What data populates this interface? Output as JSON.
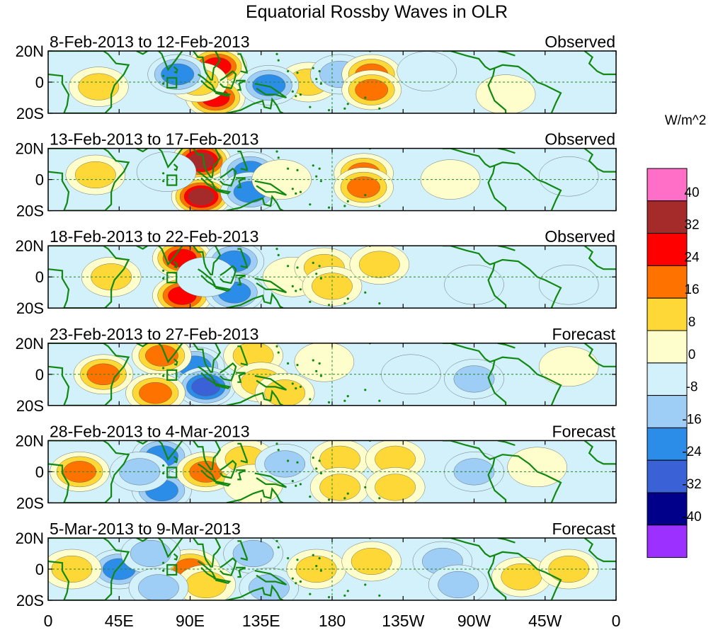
{
  "chart_data": {
    "type": "heatmap",
    "title": "Equatorial Rossby Waves in OLR",
    "units_label": "W/m^2",
    "variable": "OLR anomaly",
    "x_ticks": [
      "0",
      "45E",
      "90E",
      "135E",
      "180",
      "135W",
      "90W",
      "45W",
      "0"
    ],
    "x_tick_lon": [
      0,
      45,
      90,
      135,
      180,
      225,
      270,
      315,
      360
    ],
    "y_ticks": [
      "20N",
      "0",
      "20S"
    ],
    "y_tick_lat": [
      20,
      0,
      -20
    ],
    "lon_range": [
      0,
      360
    ],
    "lat_range": [
      -20,
      20
    ],
    "levels": [
      -40,
      -32,
      -24,
      -16,
      -8,
      0,
      8,
      16,
      24,
      32,
      40
    ],
    "colorbar_labels": [
      "40",
      "32",
      "24",
      "16",
      "8",
      "0",
      "-8",
      "-16",
      "-24",
      "-32",
      "-40"
    ],
    "colors": [
      "#9b30ff",
      "#00008b",
      "#3a62d6",
      "#2b8de8",
      "#9ecdf6",
      "#d2f1fb",
      "#fefecc",
      "#fed836",
      "#fe7300",
      "#ff0000",
      "#a52a2a",
      "#ff6ec7"
    ],
    "panels": [
      {
        "period": "8-Feb-2013 to 12-Feb-2013",
        "status": "Observed",
        "features": [
          {
            "lon": 107,
            "lat": 10,
            "value": 30
          },
          {
            "lon": 106,
            "lat": -10,
            "value": 30
          },
          {
            "lon": 95,
            "lat": 0,
            "value": 12
          },
          {
            "lon": 165,
            "lat": 0,
            "value": 8
          },
          {
            "lon": 82,
            "lat": 5,
            "value": -20
          },
          {
            "lon": 140,
            "lat": -2,
            "value": -20
          },
          {
            "lon": 185,
            "lat": 5,
            "value": -14
          },
          {
            "lon": 205,
            "lat": 5,
            "value": 20
          },
          {
            "lon": 205,
            "lat": -5,
            "value": 18
          },
          {
            "lon": 32,
            "lat": -3,
            "value": 10
          },
          {
            "lon": 240,
            "lat": 7,
            "value": -6
          },
          {
            "lon": 290,
            "lat": -8,
            "value": 6
          }
        ]
      },
      {
        "period": "13-Feb-2013 to 17-Feb-2013",
        "status": "Observed",
        "features": [
          {
            "lon": 97,
            "lat": 12,
            "value": 34
          },
          {
            "lon": 97,
            "lat": -11,
            "value": 36
          },
          {
            "lon": 128,
            "lat": 5,
            "value": -18
          },
          {
            "lon": 128,
            "lat": -8,
            "value": -16
          },
          {
            "lon": 148,
            "lat": 0,
            "value": 6
          },
          {
            "lon": 200,
            "lat": 4,
            "value": 18
          },
          {
            "lon": 200,
            "lat": -5,
            "value": 18
          },
          {
            "lon": 255,
            "lat": 0,
            "value": 4
          },
          {
            "lon": 75,
            "lat": 5,
            "value": -6
          },
          {
            "lon": 30,
            "lat": 3,
            "value": 8
          },
          {
            "lon": 330,
            "lat": 2,
            "value": -5
          }
        ]
      },
      {
        "period": "18-Feb-2013 to 22-Feb-2013",
        "status": "Observed",
        "features": [
          {
            "lon": 85,
            "lat": 12,
            "value": 28
          },
          {
            "lon": 85,
            "lat": -12,
            "value": 28
          },
          {
            "lon": 118,
            "lat": 10,
            "value": -22
          },
          {
            "lon": 118,
            "lat": -10,
            "value": -20
          },
          {
            "lon": 100,
            "lat": 0,
            "value": -6
          },
          {
            "lon": 155,
            "lat": 0,
            "value": 5
          },
          {
            "lon": 175,
            "lat": 6,
            "value": 10
          },
          {
            "lon": 180,
            "lat": -6,
            "value": 10
          },
          {
            "lon": 210,
            "lat": 8,
            "value": 8
          },
          {
            "lon": 40,
            "lat": 0,
            "value": 8
          },
          {
            "lon": 270,
            "lat": -5,
            "value": -5
          },
          {
            "lon": 330,
            "lat": -5,
            "value": -6
          }
        ]
      },
      {
        "period": "23-Feb-2013 to 27-Feb-2013",
        "status": "Forecast",
        "features": [
          {
            "lon": 93,
            "lat": 5,
            "value": -22
          },
          {
            "lon": 100,
            "lat": -8,
            "value": -28
          },
          {
            "lon": 72,
            "lat": 12,
            "value": 16
          },
          {
            "lon": 68,
            "lat": -12,
            "value": 16
          },
          {
            "lon": 35,
            "lat": 0,
            "value": 16
          },
          {
            "lon": 130,
            "lat": 12,
            "value": 8
          },
          {
            "lon": 135,
            "lat": -5,
            "value": 10
          },
          {
            "lon": 150,
            "lat": -12,
            "value": 12
          },
          {
            "lon": 175,
            "lat": 8,
            "value": 6
          },
          {
            "lon": 230,
            "lat": 0,
            "value": -5
          },
          {
            "lon": 270,
            "lat": -3,
            "value": -10
          },
          {
            "lon": 330,
            "lat": 5,
            "value": 4
          }
        ]
      },
      {
        "period": "28-Feb-2013 to 4-Mar-2013",
        "status": "Forecast",
        "features": [
          {
            "lon": 72,
            "lat": 10,
            "value": -20
          },
          {
            "lon": 72,
            "lat": -12,
            "value": -22
          },
          {
            "lon": 58,
            "lat": 0,
            "value": -10
          },
          {
            "lon": 100,
            "lat": 0,
            "value": 20
          },
          {
            "lon": 20,
            "lat": 0,
            "value": 18
          },
          {
            "lon": 125,
            "lat": 8,
            "value": 8
          },
          {
            "lon": 130,
            "lat": -8,
            "value": 6
          },
          {
            "lon": 150,
            "lat": 5,
            "value": -8
          },
          {
            "lon": 185,
            "lat": 8,
            "value": 12
          },
          {
            "lon": 185,
            "lat": -10,
            "value": 12
          },
          {
            "lon": 220,
            "lat": 8,
            "value": 8
          },
          {
            "lon": 220,
            "lat": -10,
            "value": 8
          },
          {
            "lon": 270,
            "lat": 0,
            "value": -14
          },
          {
            "lon": 310,
            "lat": 3,
            "value": 4
          }
        ]
      },
      {
        "period": "5-Mar-2013 to 9-Mar-2013",
        "status": "Forecast",
        "features": [
          {
            "lon": 90,
            "lat": 0,
            "value": 22
          },
          {
            "lon": 100,
            "lat": -10,
            "value": 12
          },
          {
            "lon": 45,
            "lat": 0,
            "value": -20
          },
          {
            "lon": 65,
            "lat": 10,
            "value": -10
          },
          {
            "lon": 70,
            "lat": -12,
            "value": -12
          },
          {
            "lon": 130,
            "lat": 10,
            "value": -10
          },
          {
            "lon": 140,
            "lat": -12,
            "value": -12
          },
          {
            "lon": 170,
            "lat": 0,
            "value": 10
          },
          {
            "lon": 205,
            "lat": 5,
            "value": 8
          },
          {
            "lon": 250,
            "lat": 5,
            "value": -14
          },
          {
            "lon": 260,
            "lat": -10,
            "value": -12
          },
          {
            "lon": 300,
            "lat": -5,
            "value": 12
          },
          {
            "lon": 330,
            "lat": 0,
            "value": 8
          },
          {
            "lon": 15,
            "lat": 0,
            "value": 12
          }
        ]
      }
    ]
  }
}
